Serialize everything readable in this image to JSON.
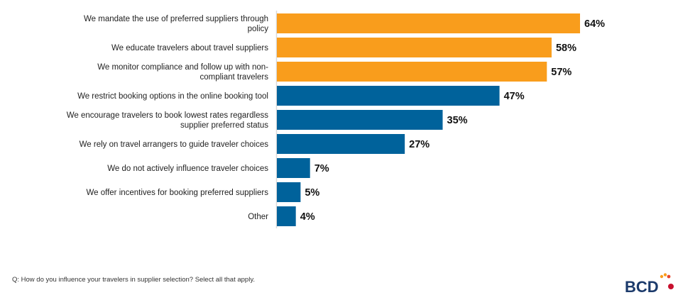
{
  "chart_data": {
    "type": "bar",
    "orientation": "horizontal",
    "categories": [
      [
        "We mandate the use of preferred suppliers through",
        "policy"
      ],
      [
        "We educate travelers about travel suppliers"
      ],
      [
        "We monitor compliance and follow up with non-",
        "compliant travelers"
      ],
      [
        "We restrict booking options in the online booking tool"
      ],
      [
        "We encourage travelers to book lowest rates regardless",
        "supplier preferred status"
      ],
      [
        "We rely on travel arrangers to guide traveler choices"
      ],
      [
        "We do not actively influence traveler choices"
      ],
      [
        "We offer incentives for booking preferred suppliers"
      ],
      [
        "Other"
      ]
    ],
    "values": [
      64,
      58,
      57,
      47,
      35,
      27,
      7,
      5,
      4
    ],
    "value_labels": [
      "64%",
      "58%",
      "57%",
      "47%",
      "35%",
      "27%",
      "7%",
      "5%",
      "4%"
    ],
    "bar_colors": [
      "#F99D1C",
      "#F99D1C",
      "#F99D1C",
      "#00629B",
      "#00629B",
      "#00629B",
      "#00629B",
      "#00629B",
      "#00629B"
    ],
    "xlim": [
      0,
      100
    ],
    "grid": false,
    "legend": "none"
  },
  "footnote": "Q: How do you influence your travelers in supplier selection? Select all that apply.",
  "logo": {
    "text": "BCD",
    "text_color": "#1B3A6B",
    "dot_colors": [
      "#F99D1C",
      "#E8452C",
      "#C8102E"
    ]
  }
}
